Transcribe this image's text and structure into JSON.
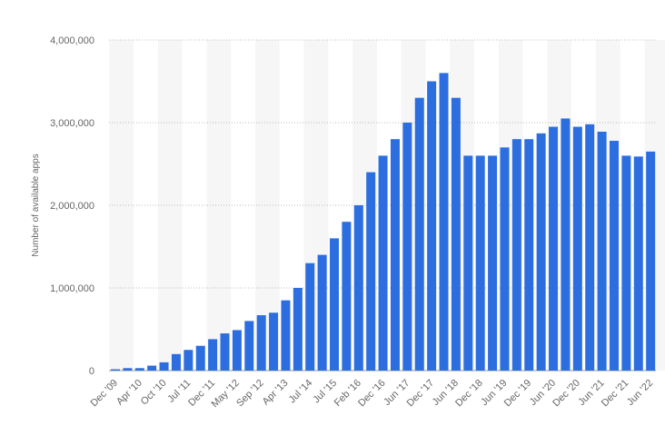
{
  "chart_data": {
    "type": "bar",
    "y_label": "Number of available apps",
    "categories": [
      "Dec '09",
      null,
      "Apr '10",
      null,
      "Oct '10",
      null,
      "Jul '11",
      null,
      "Dec '11",
      null,
      "May '12",
      null,
      "Sep '12",
      null,
      "Apr '13",
      null,
      "Jul '14",
      null,
      "Jul '15",
      null,
      "Feb '16",
      null,
      "Dec '16",
      null,
      "Jun '17",
      null,
      "Dec '17",
      null,
      "Jun '18",
      null,
      "Dec '18",
      null,
      "Jun '19",
      null,
      "Dec '19",
      null,
      "Jun '20",
      null,
      "Dec '20",
      null,
      "Jun '21",
      null,
      "Dec '21",
      null,
      "Jun '22"
    ],
    "values": [
      16000,
      30000,
      30000,
      60000,
      100000,
      200000,
      250000,
      300000,
      380000,
      450000,
      490000,
      600000,
      670000,
      700000,
      850000,
      1000000,
      1300000,
      1400000,
      1600000,
      1800000,
      2000000,
      2400000,
      2600000,
      2800000,
      3000000,
      3300000,
      3500000,
      3600000,
      3300000,
      2600000,
      2600000,
      2600000,
      2700000,
      2800000,
      2800000,
      2870000,
      2950000,
      3050000,
      2950000,
      2980000,
      2890000,
      2780000,
      2600000,
      2590000,
      2650000
    ],
    "color": "#2c6ee0",
    "ylim": [
      0,
      4000000
    ],
    "yticks": [
      0,
      {
        "value": 1000000,
        "label": "1,000,000"
      },
      {
        "value": 2000000,
        "label": "2,000,000"
      },
      {
        "value": 3000000,
        "label": "3,000,000"
      },
      {
        "value": 4000000,
        "label": "4,000,000"
      }
    ],
    "grid": true
  }
}
